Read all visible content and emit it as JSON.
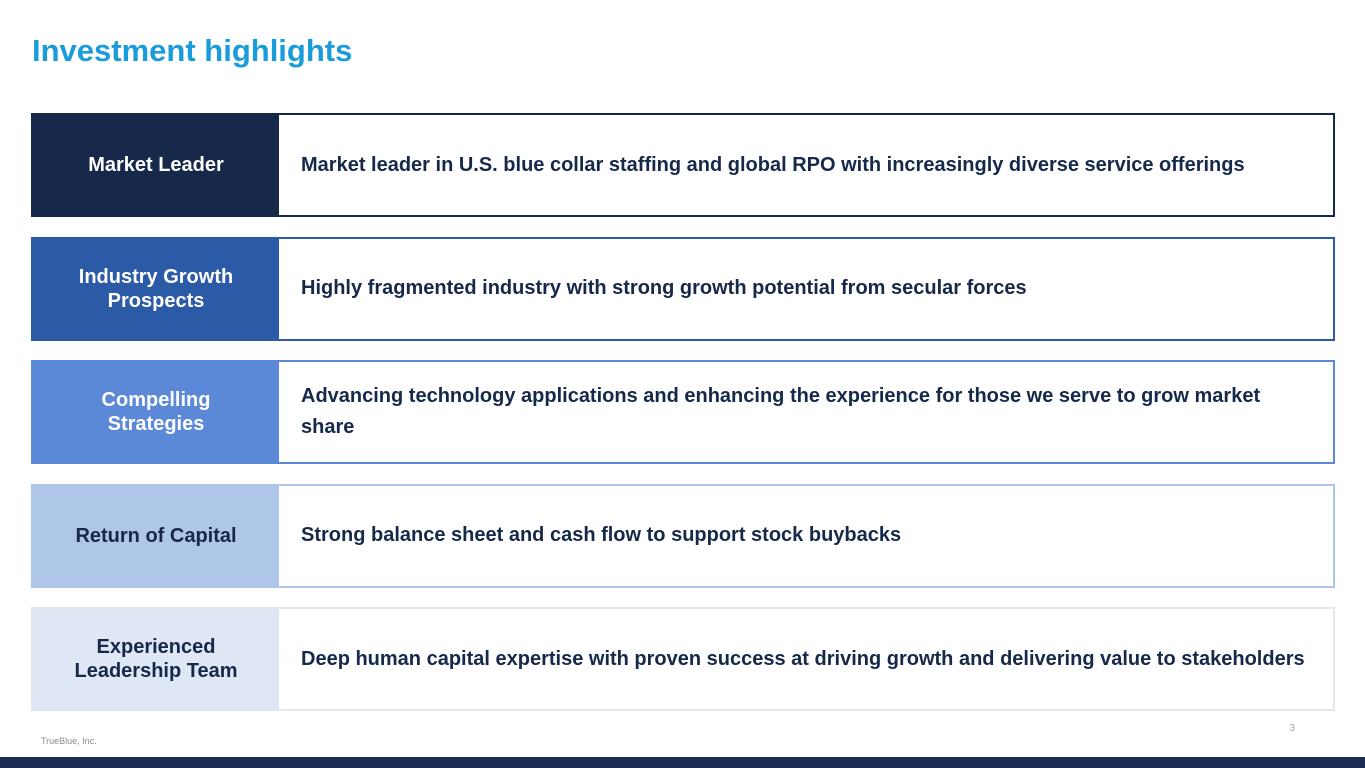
{
  "slide": {
    "title": "Investment highlights"
  },
  "colors": {
    "title_accent": "#199CD9",
    "body_text": "#16294B",
    "footer_bar": "#1B2E4F"
  },
  "rows": [
    {
      "label": "Market Leader",
      "description": "Market leader in U.S. blue collar staffing and global RPO with increasingly diverse service offerings",
      "box_color": "#16294B",
      "border_color": "#16294B",
      "label_color": "#FFFFFF"
    },
    {
      "label": "Industry Growth Prospects",
      "description": "Highly fragmented industry with strong growth potential from secular forces",
      "box_color": "#2B5AA7",
      "border_color": "#2B5AA7",
      "label_color": "#FFFFFF"
    },
    {
      "label": "Compelling Strategies",
      "description": "Advancing technology applications and enhancing the experience for those we serve to grow market share",
      "box_color": "#5B88D7",
      "border_color": "#5B88D7",
      "label_color": "#FFFFFF"
    },
    {
      "label": "Return of Capital",
      "description": "Strong balance sheet and cash flow to support stock buybacks",
      "box_color": "#AEC6E8",
      "border_color": "#AEC6E8",
      "label_color": "#16294B"
    },
    {
      "label": "Experienced Leadership Team",
      "description": "Deep human capital expertise with proven success at driving growth and delivering value to stakeholders",
      "box_color": "#DEE7F3",
      "border_color": "#E2E8F1",
      "label_color": "#16294B"
    }
  ],
  "footer": {
    "company": "TrueBlue, Inc.",
    "page_number": "3"
  }
}
